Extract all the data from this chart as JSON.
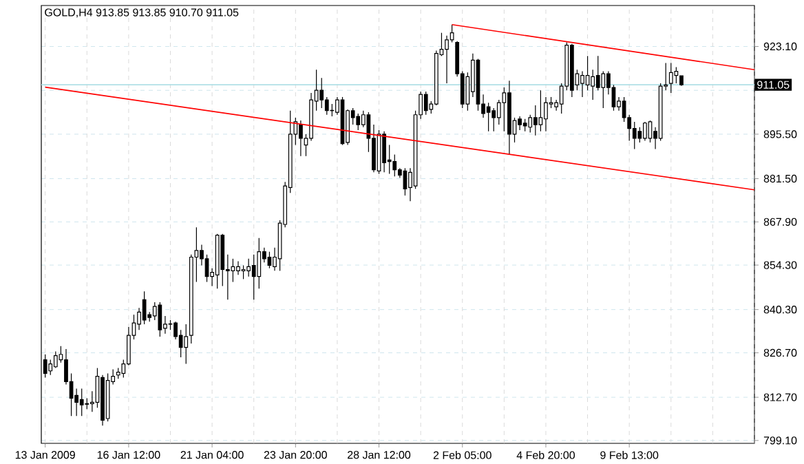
{
  "chart_data": {
    "type": "candlestick",
    "title": "GOLD,H4  913.85 913.85 910.70 911.05",
    "categories": [
      "13 Jan 2009",
      null,
      null,
      null,
      null,
      null,
      null,
      null,
      null,
      null,
      null,
      null,
      null,
      null,
      null,
      null,
      "16 Jan 12:00",
      null,
      null,
      null,
      null,
      null,
      null,
      null,
      null,
      null,
      null,
      null,
      null,
      null,
      null,
      null,
      "21 Jan 04:00",
      null,
      null,
      null,
      null,
      null,
      null,
      null,
      null,
      null,
      null,
      null,
      null,
      null,
      null,
      null,
      "23 Jan 20:00",
      null,
      null,
      null,
      null,
      null,
      null,
      null,
      null,
      null,
      null,
      null,
      null,
      null,
      null,
      null,
      "28 Jan 12:00",
      null,
      null,
      null,
      null,
      null,
      null,
      null,
      null,
      null,
      null,
      null,
      null,
      null,
      null,
      null,
      "2 Feb 05:00",
      null,
      null,
      null,
      null,
      null,
      null,
      null,
      null,
      null,
      null,
      null,
      null,
      null,
      null,
      null,
      "4 Feb 20:00",
      null,
      null,
      null,
      null,
      null,
      null,
      null,
      null,
      null,
      null,
      null,
      null,
      null,
      null,
      null,
      "9 Feb 13:00",
      null,
      null,
      null,
      null,
      null,
      null,
      null,
      null,
      null,
      null,
      null,
      null,
      null,
      null,
      null,
      null,
      null,
      null,
      null,
      null,
      null,
      null,
      null,
      null
    ],
    "series": [
      {
        "axis": "y2",
        "color": "#000000",
        "ohlc": [
          [
            824.5,
            826.2,
            818.9,
            820.2
          ],
          [
            821.0,
            824.5,
            819.7,
            823.2
          ],
          [
            822.3,
            827.1,
            821.9,
            825.8
          ],
          [
            824.5,
            828.8,
            823.6,
            826.2
          ],
          [
            824.5,
            827.9,
            816.7,
            817.6
          ],
          [
            817.6,
            820.2,
            806.8,
            812.4
          ],
          [
            813.3,
            815.4,
            806.8,
            811.1
          ],
          [
            812.0,
            815.4,
            806.8,
            810.3
          ],
          [
            810.7,
            812.4,
            809.0,
            810.5
          ],
          [
            810.7,
            814.6,
            808.1,
            811.1
          ],
          [
            811.1,
            821.9,
            809.4,
            819.3
          ],
          [
            818.9,
            819.7,
            803.8,
            805.5
          ],
          [
            806.0,
            820.2,
            805.1,
            818.0
          ],
          [
            817.6,
            821.5,
            816.7,
            819.3
          ],
          [
            819.7,
            821.9,
            818.5,
            820.6
          ],
          [
            820.2,
            824.5,
            818.9,
            823.2
          ],
          [
            823.2,
            834.8,
            822.8,
            832.2
          ],
          [
            832.2,
            838.7,
            830.9,
            836.1
          ],
          [
            835.7,
            840.8,
            833.9,
            839.5
          ],
          [
            843.4,
            846.0,
            835.7,
            837.0
          ],
          [
            838.7,
            839.5,
            836.5,
            837.8
          ],
          [
            838.3,
            842.6,
            837.0,
            841.3
          ],
          [
            841.7,
            842.6,
            831.8,
            833.9
          ],
          [
            834.4,
            838.3,
            832.7,
            835.7
          ],
          [
            835.7,
            837.0,
            833.9,
            835.8
          ],
          [
            836.1,
            836.5,
            830.9,
            831.8
          ],
          [
            832.2,
            833.9,
            825.3,
            828.4
          ],
          [
            828.4,
            835.7,
            823.2,
            831.8
          ],
          [
            832.2,
            857.6,
            829.6,
            856.8
          ],
          [
            856.8,
            866.2,
            849.0,
            858.9
          ],
          [
            858.9,
            860.7,
            854.2,
            856.3
          ],
          [
            856.3,
            857.6,
            849.0,
            850.7
          ],
          [
            850.7,
            853.3,
            847.7,
            852.0
          ],
          [
            851.2,
            864.1,
            846.9,
            863.7
          ],
          [
            863.7,
            864.1,
            847.7,
            852.9
          ],
          [
            852.9,
            857.6,
            843.4,
            852.5
          ],
          [
            852.5,
            856.3,
            849.0,
            853.8
          ],
          [
            852.5,
            855.5,
            851.2,
            853.8
          ],
          [
            852.5,
            854.2,
            849.9,
            852.9
          ],
          [
            852.5,
            856.3,
            850.7,
            853.8
          ],
          [
            854.2,
            857.6,
            843.4,
            850.7
          ],
          [
            850.7,
            862.8,
            846.9,
            858.5
          ],
          [
            858.5,
            859.8,
            855.1,
            856.3
          ],
          [
            856.8,
            858.5,
            853.3,
            854.2
          ],
          [
            853.8,
            859.8,
            852.5,
            856.8
          ],
          [
            856.3,
            868.4,
            852.5,
            867.5
          ],
          [
            867.1,
            880.5,
            866.2,
            879.2
          ],
          [
            878.7,
            902.9,
            877.0,
            895.5
          ],
          [
            895.5,
            900.7,
            892.1,
            899.4
          ],
          [
            898.5,
            899.8,
            888.6,
            894.2
          ],
          [
            892.1,
            895.5,
            888.6,
            894.2
          ],
          [
            894.2,
            908.5,
            893.4,
            906.3
          ],
          [
            905.9,
            915.8,
            902.9,
            909.3
          ],
          [
            909.3,
            913.2,
            903.7,
            906.3
          ],
          [
            906.3,
            907.2,
            901.6,
            902.9
          ],
          [
            902.9,
            905.0,
            901.1,
            903.0
          ],
          [
            902.4,
            907.2,
            901.6,
            906.3
          ],
          [
            906.3,
            907.2,
            892.1,
            892.5
          ],
          [
            892.9,
            903.3,
            892.1,
            902.9
          ],
          [
            902.9,
            903.7,
            898.5,
            900.7
          ],
          [
            901.1,
            902.0,
            896.8,
            898.5
          ],
          [
            898.5,
            902.9,
            897.7,
            901.6
          ],
          [
            901.6,
            902.4,
            889.9,
            894.2
          ],
          [
            894.2,
            898.5,
            883.5,
            884.3
          ],
          [
            883.9,
            896.8,
            883.0,
            895.5
          ],
          [
            895.5,
            896.4,
            883.5,
            886.5
          ],
          [
            887.4,
            892.1,
            883.0,
            886.9
          ],
          [
            886.9,
            889.1,
            882.2,
            884.3
          ],
          [
            884.3,
            884.8,
            881.8,
            882.6
          ],
          [
            883.9,
            884.8,
            876.2,
            878.3
          ],
          [
            878.7,
            884.8,
            874.4,
            883.5
          ],
          [
            879.2,
            902.9,
            878.3,
            901.6
          ],
          [
            901.6,
            908.9,
            900.3,
            908.0
          ],
          [
            908.0,
            908.9,
            901.6,
            902.9
          ],
          [
            903.3,
            905.9,
            902.0,
            905.0
          ],
          [
            905.0,
            921.8,
            904.6,
            920.9
          ],
          [
            920.5,
            927.4,
            920.1,
            922.2
          ],
          [
            922.2,
            926.5,
            911.5,
            925.2
          ],
          [
            925.2,
            930.0,
            924.4,
            927.4
          ],
          [
            924.4,
            924.8,
            913.6,
            914.5
          ],
          [
            914.5,
            915.3,
            903.7,
            905.0
          ],
          [
            905.0,
            914.9,
            902.9,
            913.6
          ],
          [
            908.9,
            920.9,
            907.2,
            918.8
          ],
          [
            918.8,
            919.2,
            902.9,
            905.0
          ],
          [
            905.0,
            908.0,
            900.7,
            902.0
          ],
          [
            904.1,
            905.4,
            896.4,
            902.4
          ],
          [
            902.9,
            903.7,
            896.4,
            900.7
          ],
          [
            900.7,
            906.3,
            898.5,
            905.4
          ],
          [
            905.4,
            910.2,
            896.4,
            908.5
          ],
          [
            908.5,
            912.3,
            889.1,
            895.5
          ],
          [
            895.5,
            900.7,
            892.9,
            899.8
          ],
          [
            900.3,
            901.1,
            896.8,
            898.5
          ],
          [
            899.0,
            900.3,
            896.4,
            898.1
          ],
          [
            897.7,
            901.6,
            896.0,
            900.7
          ],
          [
            900.7,
            904.6,
            895.1,
            898.5
          ],
          [
            898.5,
            909.3,
            896.4,
            900.7
          ],
          [
            900.3,
            907.2,
            896.4,
            905.4
          ],
          [
            905.0,
            907.2,
            903.7,
            905.4
          ],
          [
            904.1,
            906.3,
            902.9,
            905.4
          ],
          [
            905.0,
            911.5,
            902.0,
            910.6
          ],
          [
            910.6,
            924.4,
            909.3,
            923.5
          ],
          [
            923.5,
            923.9,
            907.2,
            909.3
          ],
          [
            911.0,
            915.8,
            909.3,
            914.5
          ],
          [
            911.5,
            915.3,
            907.2,
            914.0
          ],
          [
            911.0,
            920.1,
            909.3,
            914.0
          ],
          [
            910.6,
            915.8,
            906.3,
            913.6
          ],
          [
            914.0,
            920.1,
            909.3,
            910.2
          ],
          [
            910.2,
            915.3,
            903.7,
            914.5
          ],
          [
            914.5,
            915.3,
            908.0,
            910.2
          ],
          [
            910.2,
            911.0,
            902.9,
            904.1
          ],
          [
            904.1,
            907.2,
            902.9,
            905.9
          ],
          [
            905.9,
            907.2,
            899.4,
            900.7
          ],
          [
            900.7,
            901.6,
            893.4,
            897.3
          ],
          [
            897.3,
            899.4,
            890.8,
            894.2
          ],
          [
            896.4,
            897.7,
            892.9,
            894.2
          ],
          [
            894.2,
            899.4,
            893.4,
            899.0
          ],
          [
            894.2,
            899.8,
            892.9,
            899.4
          ],
          [
            896.4,
            897.7,
            890.8,
            894.2
          ],
          [
            894.2,
            911.5,
            893.4,
            910.6
          ],
          [
            910.6,
            917.9,
            909.3,
            911.0
          ],
          [
            911.5,
            917.9,
            908.5,
            914.9
          ],
          [
            914.0,
            916.6,
            911.5,
            915.3
          ],
          [
            913.85,
            913.85,
            910.7,
            911.05
          ],
          null,
          null,
          null,
          null,
          null,
          null,
          null,
          null,
          null,
          null,
          null,
          null,
          null,
          null
        ]
      },
      {
        "type": "line",
        "axis": "y2",
        "color": "#ff0000",
        "values": [
          null,
          null,
          null,
          null,
          null,
          null,
          null,
          null,
          null,
          null,
          null,
          null,
          null,
          null,
          null,
          null,
          null,
          null,
          null,
          null,
          null,
          null,
          null,
          null,
          null,
          null,
          null,
          null,
          null,
          null,
          null,
          null,
          null,
          null,
          null,
          null,
          null,
          null,
          null,
          null,
          null,
          null,
          null,
          null,
          null,
          null,
          null,
          null,
          null,
          null,
          null,
          null,
          null,
          null,
          null,
          null,
          null,
          null,
          null,
          null,
          null,
          null,
          null,
          null,
          null,
          null,
          null,
          null,
          null,
          null,
          null,
          null,
          null,
          null,
          null,
          null,
          null,
          null,
          930.0,
          null,
          null,
          null,
          null,
          null,
          null,
          null,
          null,
          null,
          null,
          null,
          null,
          null,
          null,
          null,
          null,
          null,
          null,
          null,
          null,
          null,
          null,
          null,
          null,
          null,
          null,
          null,
          null,
          null,
          null,
          null,
          null,
          null,
          null,
          null,
          null,
          null,
          null,
          null,
          null,
          null,
          null,
          null,
          null,
          null,
          null,
          null,
          null,
          null,
          null,
          null,
          null,
          null,
          null,
          null,
          null,
          null,
          915.8
        ]
      },
      {
        "type": "line",
        "axis": "y2",
        "color": "#ff0000",
        "values": [
          910.3,
          null,
          null,
          null,
          null,
          null,
          null,
          null,
          null,
          null,
          null,
          null,
          null,
          null,
          null,
          null,
          null,
          null,
          null,
          null,
          null,
          null,
          null,
          null,
          null,
          null,
          null,
          null,
          null,
          null,
          null,
          null,
          null,
          null,
          null,
          null,
          null,
          null,
          null,
          null,
          null,
          null,
          null,
          null,
          null,
          null,
          null,
          null,
          null,
          null,
          null,
          null,
          null,
          null,
          null,
          null,
          null,
          null,
          null,
          null,
          null,
          null,
          null,
          null,
          null,
          null,
          null,
          null,
          null,
          null,
          null,
          null,
          null,
          null,
          null,
          null,
          null,
          null,
          null,
          null,
          null,
          null,
          null,
          null,
          null,
          null,
          null,
          null,
          null,
          null,
          null,
          null,
          null,
          null,
          null,
          null,
          null,
          null,
          null,
          null,
          null,
          null,
          null,
          null,
          null,
          null,
          null,
          null,
          null,
          null,
          null,
          null,
          null,
          null,
          null,
          null,
          null,
          null,
          null,
          null,
          null,
          null,
          null,
          null,
          null,
          null,
          null,
          null,
          null,
          null,
          null,
          null,
          null,
          null,
          null,
          null,
          878.0
        ]
      }
    ],
    "y2lim": [
      798.2,
      936.0
    ],
    "y2ticks": [
      {
        "value": 799.1,
        "label": "799.10"
      },
      {
        "value": 812.7,
        "label": "812.70"
      },
      {
        "value": 826.7,
        "label": "826.70"
      },
      {
        "value": 840.3,
        "label": "840.30"
      },
      {
        "value": 854.3,
        "label": "854.30"
      },
      {
        "value": 867.9,
        "label": "867.90"
      },
      {
        "value": 881.5,
        "label": "881.50"
      },
      {
        "value": 895.5,
        "label": "895.50"
      },
      {
        "value": 909.3,
        "label": null
      },
      {
        "value": 923.1,
        "label": "923.10"
      }
    ],
    "ref_lines": [
      {
        "axis": "y2",
        "value": 911.05,
        "label": "911.05",
        "color": "#b0e0e6"
      }
    ],
    "grid": true,
    "marker": "none"
  }
}
